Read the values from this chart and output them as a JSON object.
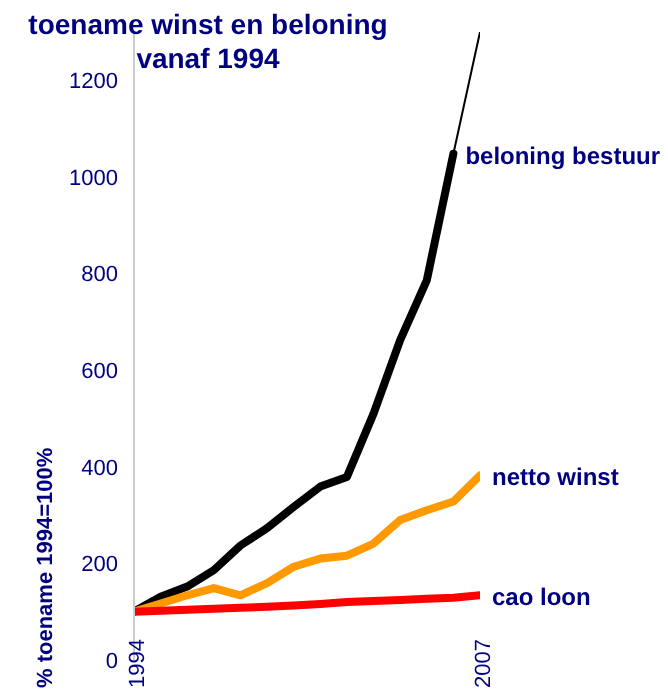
{
  "chart_data": {
    "type": "line",
    "title": "toename winst en beloning vanaf 1994",
    "ylabel": "% toename 1994=100%",
    "x": [
      1994,
      1995,
      1996,
      1997,
      1998,
      1999,
      2000,
      2001,
      2002,
      2003,
      2004,
      2005,
      2006,
      2007
    ],
    "xlim": [
      1994,
      2007
    ],
    "xticks": [
      1994,
      2007
    ],
    "ylim": [
      0,
      1300
    ],
    "yticks": [
      0,
      200,
      400,
      600,
      800,
      1000,
      1200
    ],
    "grid": false,
    "legend": false,
    "marker": "none",
    "line_style": "solid",
    "series": [
      {
        "name": "beloning bestuur",
        "color": "#000000",
        "values": [
          100,
          131,
          152,
          186,
          237,
          273,
          317,
          359,
          379,
          510,
          662,
          786,
          1048,
          null
        ]
      },
      {
        "color": "#000000",
        "values": [
          null,
          null,
          null,
          null,
          null,
          null,
          null,
          null,
          null,
          null,
          null,
          null,
          1048,
          1300
        ]
      },
      {
        "name": "netto winst",
        "color": "#ff9900",
        "values": [
          100,
          117,
          134,
          149,
          134,
          159,
          193,
          210,
          216,
          241,
          290,
          310,
          328,
          382
        ]
      },
      {
        "name": "cao loon",
        "color": "#ff0000",
        "values": [
          100,
          102,
          104,
          106,
          108,
          110,
          113,
          116,
          120,
          122,
          124,
          127,
          129,
          134
        ]
      }
    ]
  }
}
